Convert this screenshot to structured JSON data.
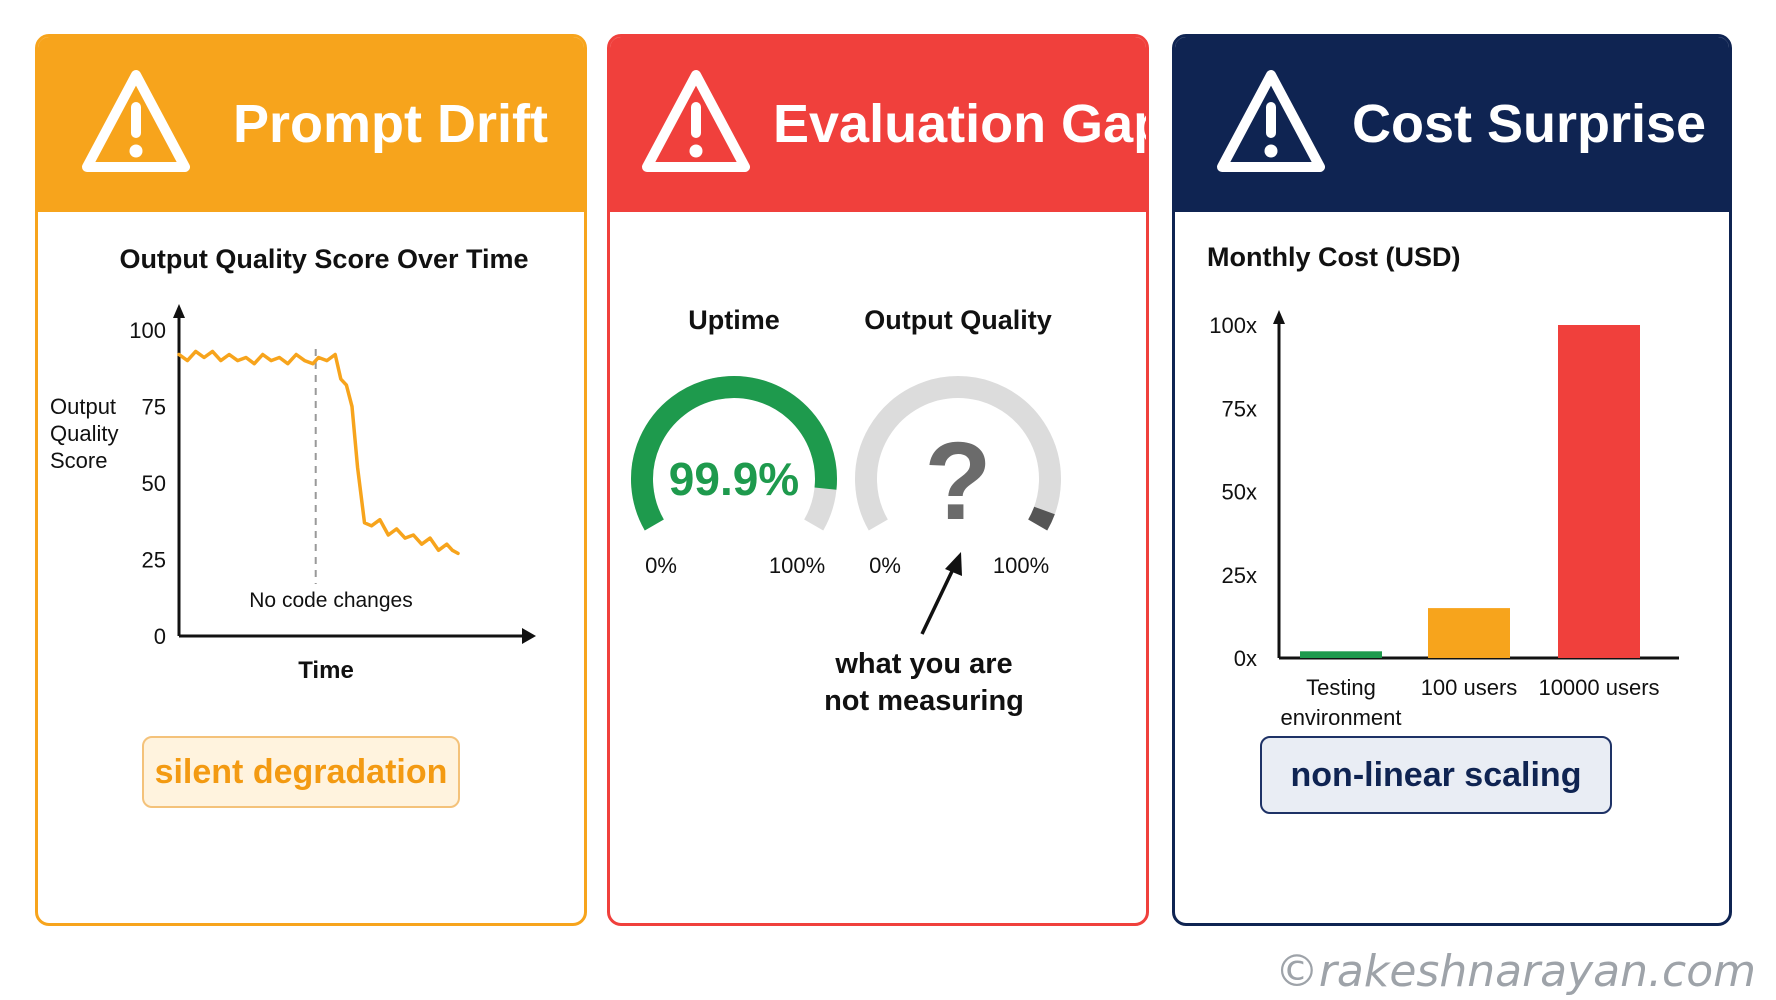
{
  "colors": {
    "orange": "#F7A41C",
    "red": "#F0403C",
    "navy": "#0F2452",
    "green": "#1E9A4D",
    "gray": "#DCDCDC"
  },
  "cards": [
    {
      "title": "Prompt Drift",
      "icon": "warning-triangle-icon",
      "header_color": "#F7A41C",
      "tag": "silent degradation"
    },
    {
      "title": "Evaluation Gaps",
      "icon": "warning-triangle-icon",
      "header_color": "#F0403C",
      "tag": ""
    },
    {
      "title": "Cost Surprise",
      "icon": "warning-triangle-icon",
      "header_color": "#0F2452",
      "tag": "non-linear scaling"
    }
  ],
  "chart_data": [
    {
      "type": "line",
      "title": "Output Quality Score Over Time",
      "xlabel": "Time",
      "ylabel": "Output Quality Score",
      "ylim": [
        0,
        100
      ],
      "yticks": [
        "0",
        "25",
        "50",
        "75",
        "100"
      ],
      "grid": false,
      "annotation": "No code changes",
      "annotation_x": 0.49,
      "series": [
        {
          "color": "#F7A41C",
          "x": [
            0,
            0.03,
            0.06,
            0.09,
            0.12,
            0.15,
            0.18,
            0.21,
            0.24,
            0.27,
            0.3,
            0.33,
            0.36,
            0.39,
            0.42,
            0.45,
            0.48,
            0.5,
            0.53,
            0.56,
            0.58,
            0.6,
            0.62,
            0.64,
            0.665,
            0.69,
            0.72,
            0.75,
            0.78,
            0.81,
            0.84,
            0.87,
            0.9,
            0.93,
            0.96,
            0.98,
            1.0
          ],
          "y": [
            92,
            90,
            93,
            91,
            93,
            90,
            92,
            90,
            91,
            89,
            92,
            90,
            91,
            89,
            92,
            90,
            89,
            91,
            90,
            92,
            84,
            82,
            75,
            55,
            37,
            36,
            38,
            33,
            35,
            32,
            33,
            30,
            32,
            28,
            30,
            28,
            27
          ]
        }
      ]
    },
    {
      "type": "gauge",
      "gauges": [
        {
          "label": "Uptime",
          "value": 99.9,
          "value_text": "99.9%",
          "min_label": "0%",
          "max_label": "100%",
          "color": "#1E9A4D"
        },
        {
          "label": "Output Quality",
          "value": null,
          "value_text": "?",
          "min_label": "0%",
          "max_label": "100%",
          "color": "#DCDCDC"
        }
      ],
      "annotation": [
        "what you are",
        "not measuring"
      ]
    },
    {
      "type": "bar",
      "title": "Monthly Cost (USD)",
      "categories": [
        [
          "Testing",
          "environment"
        ],
        [
          "100 users"
        ],
        [
          "10000 users"
        ]
      ],
      "values": [
        2,
        15,
        100
      ],
      "colors": [
        "#1E9A4D",
        "#F7A41C",
        "#F0403C"
      ],
      "ylim": [
        0,
        100
      ],
      "yticks": [
        "0x",
        "25x",
        "50x",
        "75x",
        "100x"
      ],
      "grid": false
    }
  ],
  "watermark": "©rakeshnarayan.com"
}
